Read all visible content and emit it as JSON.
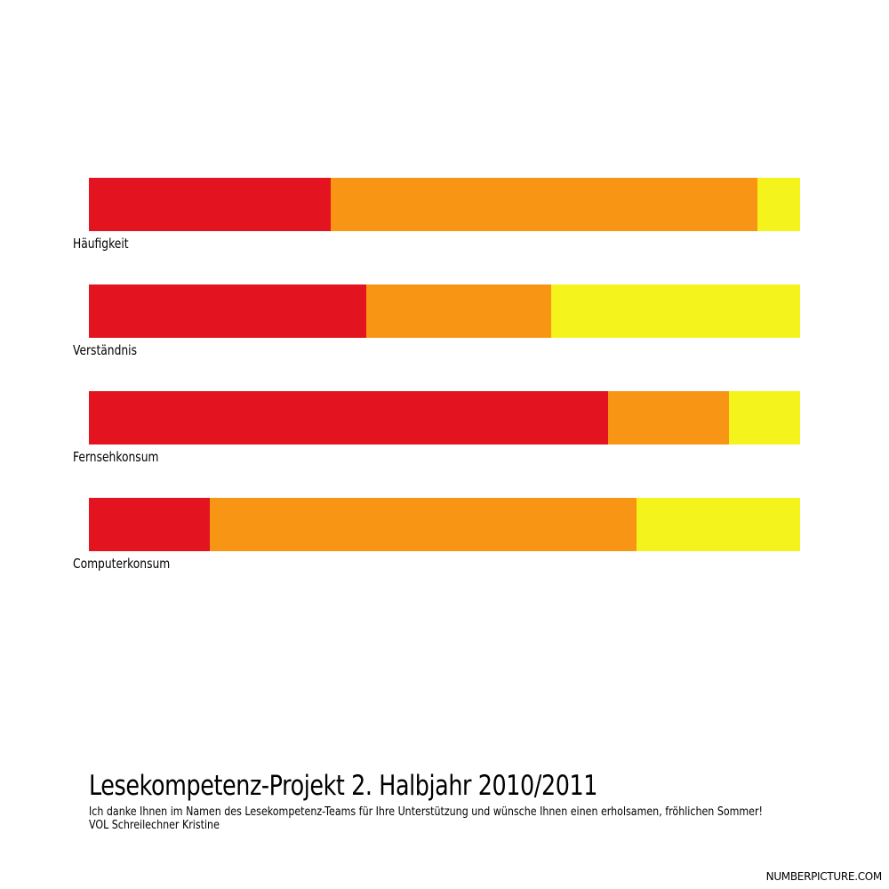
{
  "chart_data": {
    "type": "bar",
    "orientation": "horizontal",
    "stacked": true,
    "normalized": true,
    "categories": [
      "Häufigkeit",
      "Verständnis",
      "Fernsehkonsum",
      "Computerkonsum"
    ],
    "series": [
      {
        "color": "#e3141f",
        "values": [
          34,
          39,
          73,
          17
        ]
      },
      {
        "color": "#f99515",
        "values": [
          60,
          26,
          17,
          60
        ]
      },
      {
        "color": "#f5f31c",
        "values": [
          6,
          35,
          10,
          23
        ]
      }
    ],
    "xlim": [
      0,
      100
    ],
    "grid": false,
    "legend": "none"
  },
  "title": "Lesekompetenz-Projekt 2. Halbjahr 2010/2011",
  "subtitle": "Ich danke Ihnen im Namen des Lesekompetenz-Teams für Ihre Unterstützung und wünsche Ihnen einen erholsamen, fröhlichen Sommer! VOL Schreilechner Kristine",
  "watermark": "NUMBERPICTURE.COM"
}
